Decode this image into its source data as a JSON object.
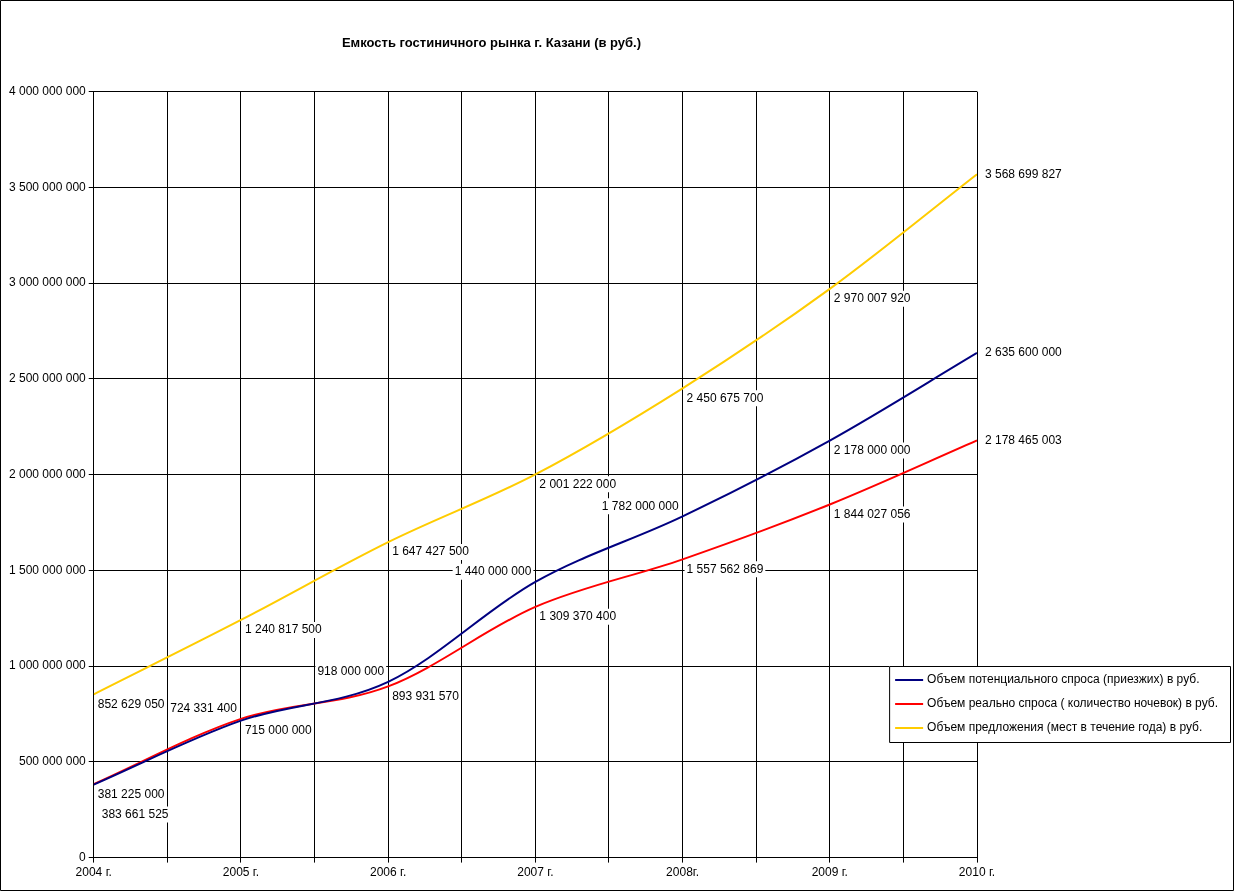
{
  "chart_data": {
    "type": "line",
    "title": "Емкость гостиничного рынка г. Казани (в руб.)",
    "x": [
      2004,
      2005,
      2006,
      2007,
      2008,
      2009,
      2010
    ],
    "series": [
      {
        "name": "Объем потенциального спроса (приезжих) в руб.",
        "color": "#000080",
        "values": [
          381225000,
          715000000,
          918000000,
          1440000000,
          1782000000,
          2178000000,
          2635600000
        ],
        "value_labels": [
          "381 225 000",
          "715 000 000",
          "918 000 000",
          "1 440 000 000",
          "1 782 000 000",
          "2 178 000 000",
          "2 635 600 000"
        ]
      },
      {
        "name": "Объем реально спроса ( количество ночевок) в руб.",
        "color": "#ff0000",
        "values": [
          383661525,
          724331400,
          893931570,
          1309370400,
          1557562869,
          1844027056,
          2178465003
        ],
        "value_labels": [
          "383 661 525",
          "724 331 400",
          "893 931 570",
          "1 309 370 400",
          "1 557 562 869",
          "1 844 027 056",
          "2 178 465 003"
        ]
      },
      {
        "name": "Объем предложения (мест в течение года) в руб.",
        "color": "#ffcc00",
        "values": [
          852629050,
          1240817500,
          1647427500,
          2001222000,
          2450675700,
          2970007920,
          3568699827
        ],
        "value_labels": [
          "852 629 050",
          "1 240 817 500",
          "1 647 427 500",
          "2 001 222 000",
          "2 450 675 700",
          "2 970 007 920",
          "3 568 699 827"
        ]
      }
    ],
    "xlim": [
      2004,
      2010
    ],
    "xticks": [
      {
        "value": 2004,
        "label": "2004 г."
      },
      {
        "value": 2004.5,
        "label": null
      },
      {
        "value": 2005,
        "label": "2005 г."
      },
      {
        "value": 2005.5,
        "label": null
      },
      {
        "value": 2006,
        "label": "2006 г."
      },
      {
        "value": 2006.5,
        "label": null
      },
      {
        "value": 2007,
        "label": "2007 г."
      },
      {
        "value": 2007.5,
        "label": null
      },
      {
        "value": 2008,
        "label": "2008г."
      },
      {
        "value": 2008.5,
        "label": null
      },
      {
        "value": 2009,
        "label": "2009 г."
      },
      {
        "value": 2009.5,
        "label": null
      },
      {
        "value": 2010,
        "label": "2010 г."
      }
    ],
    "ylim": [
      0,
      4000000000
    ],
    "yticks": [
      {
        "value": 0,
        "label": "0"
      },
      {
        "value": 500000000,
        "label": "500 000 000"
      },
      {
        "value": 1000000000,
        "label": "1 000 000 000"
      },
      {
        "value": 1500000000,
        "label": "1 500 000 000"
      },
      {
        "value": 2000000000,
        "label": "2 000 000 000"
      },
      {
        "value": 2500000000,
        "label": "2 500 000 000"
      },
      {
        "value": 3000000000,
        "label": "3 000 000 000"
      },
      {
        "value": 3500000000,
        "label": "3 500 000 000"
      },
      {
        "value": 4000000000,
        "label": "4 000 000 000"
      }
    ],
    "grid": true,
    "legend": "right",
    "marker": "none",
    "line_style": "solid"
  }
}
